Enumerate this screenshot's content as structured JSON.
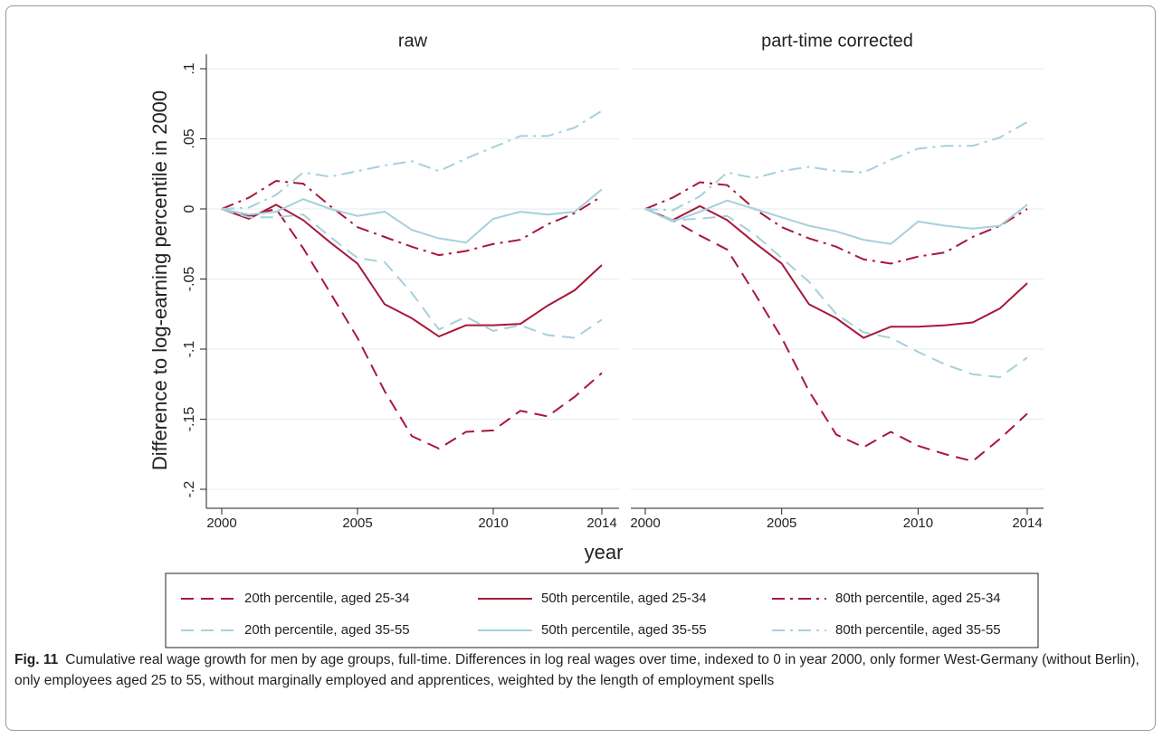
{
  "chart_data": [
    {
      "type": "line",
      "title": "raw",
      "x": [
        2000,
        2001,
        2002,
        2003,
        2004,
        2005,
        2006,
        2007,
        2008,
        2009,
        2010,
        2011,
        2012,
        2013,
        2014
      ],
      "xlim": [
        2000,
        2014
      ],
      "xticks": [
        2000,
        2005,
        2010,
        2014
      ],
      "ylim": [
        -0.2,
        0.1
      ],
      "yticks": [
        {
          "value": 0.1,
          "label": ".1"
        },
        {
          "value": 0.05,
          "label": ".05"
        },
        0,
        {
          "value": -0.05,
          "label": "-.05"
        },
        {
          "value": -0.1,
          "label": "-.1"
        },
        {
          "value": -0.15,
          "label": "-.15"
        },
        {
          "value": -0.2,
          "label": "-.2"
        }
      ],
      "grid": true,
      "series": [
        {
          "name": "20th percentile, aged 25-34",
          "color": "#a8173a",
          "dash": "dashed",
          "values": [
            0,
            -0.005,
            0.0,
            -0.028,
            -0.06,
            -0.092,
            -0.13,
            -0.162,
            -0.171,
            -0.159,
            -0.158,
            -0.144,
            -0.148,
            -0.134,
            -0.117
          ]
        },
        {
          "name": "50th percentile, aged 25-34",
          "color": "#a8173a",
          "dash": "solid",
          "values": [
            0,
            -0.007,
            0.003,
            -0.008,
            -0.024,
            -0.039,
            -0.068,
            -0.078,
            -0.091,
            -0.083,
            -0.083,
            -0.082,
            -0.069,
            -0.058,
            -0.04
          ]
        },
        {
          "name": "80th percentile, aged 25-34",
          "color": "#a8173a",
          "dash": "dashdot",
          "values": [
            0,
            0.008,
            0.02,
            0.018,
            0.002,
            -0.013,
            -0.02,
            -0.027,
            -0.033,
            -0.03,
            -0.025,
            -0.022,
            -0.011,
            -0.003,
            0.009
          ]
        },
        {
          "name": "20th percentile, aged 35-55",
          "color": "#a6d0dc",
          "dash": "dashed",
          "values": [
            0,
            -0.006,
            -0.006,
            -0.004,
            -0.02,
            -0.035,
            -0.038,
            -0.06,
            -0.086,
            -0.077,
            -0.087,
            -0.083,
            -0.09,
            -0.092,
            -0.079
          ]
        },
        {
          "name": "50th percentile, aged 35-55",
          "color": "#a6d0dc",
          "dash": "solid",
          "values": [
            0,
            -0.004,
            -0.002,
            0.007,
            0.0,
            -0.005,
            -0.002,
            -0.015,
            -0.021,
            -0.024,
            -0.007,
            -0.002,
            -0.004,
            -0.002,
            0.014
          ]
        },
        {
          "name": "80th percentile, aged 35-55",
          "color": "#a6d0dc",
          "dash": "dashdot",
          "values": [
            0,
            0.001,
            0.01,
            0.026,
            0.023,
            0.027,
            0.031,
            0.034,
            0.027,
            0.036,
            0.044,
            0.052,
            0.052,
            0.058,
            0.07
          ]
        }
      ]
    },
    {
      "type": "line",
      "title": "part-time corrected",
      "x": [
        2000,
        2001,
        2002,
        2003,
        2004,
        2005,
        2006,
        2007,
        2008,
        2009,
        2010,
        2011,
        2012,
        2013,
        2014
      ],
      "xlim": [
        2000,
        2014
      ],
      "xticks": [
        2000,
        2005,
        2010,
        2014
      ],
      "ylim": [
        -0.2,
        0.1
      ],
      "yticks": [
        0.1,
        0.05,
        0,
        -0.05,
        -0.1,
        -0.15,
        -0.2
      ],
      "grid": true,
      "series": [
        {
          "color": "#a8173a",
          "dash": "dashed",
          "values": [
            0,
            -0.008,
            -0.019,
            -0.029,
            -0.06,
            -0.092,
            -0.13,
            -0.161,
            -0.17,
            -0.159,
            -0.169,
            -0.175,
            -0.18,
            -0.164,
            -0.146
          ]
        },
        {
          "color": "#a8173a",
          "dash": "solid",
          "values": [
            0,
            -0.008,
            0.002,
            -0.008,
            -0.024,
            -0.039,
            -0.068,
            -0.078,
            -0.092,
            -0.084,
            -0.084,
            -0.083,
            -0.081,
            -0.071,
            -0.053
          ]
        },
        {
          "color": "#a8173a",
          "dash": "dashdot",
          "values": [
            0,
            0.008,
            0.019,
            0.017,
            0.0,
            -0.013,
            -0.021,
            -0.027,
            -0.036,
            -0.039,
            -0.034,
            -0.031,
            -0.02,
            -0.012,
            0.0
          ]
        },
        {
          "color": "#a6d0dc",
          "dash": "dashed",
          "values": [
            0,
            -0.008,
            -0.007,
            -0.005,
            -0.018,
            -0.035,
            -0.052,
            -0.075,
            -0.088,
            -0.092,
            -0.102,
            -0.111,
            -0.118,
            -0.12,
            -0.106
          ]
        },
        {
          "color": "#a6d0dc",
          "dash": "solid",
          "values": [
            0,
            -0.009,
            -0.002,
            0.006,
            0.0,
            -0.006,
            -0.012,
            -0.016,
            -0.022,
            -0.025,
            -0.009,
            -0.012,
            -0.014,
            -0.012,
            0.003
          ]
        },
        {
          "color": "#a6d0dc",
          "dash": "dashdot",
          "values": [
            0,
            -0.001,
            0.009,
            0.026,
            0.022,
            0.027,
            0.03,
            0.027,
            0.026,
            0.035,
            0.043,
            0.045,
            0.045,
            0.051,
            0.062
          ]
        }
      ]
    }
  ],
  "y_label": "Difference to log-earning percentile in 2000",
  "x_label": "year",
  "caption": {
    "label": "Fig. 11",
    "text": "Cumulative real wage growth for men by age groups, full-time. Differences in log real wages over time, indexed to 0 in year 2000, only former West-Germany (without Berlin), only employees aged 25 to 55, without marginally employed and apprentices, weighted by the length of employment spells"
  }
}
